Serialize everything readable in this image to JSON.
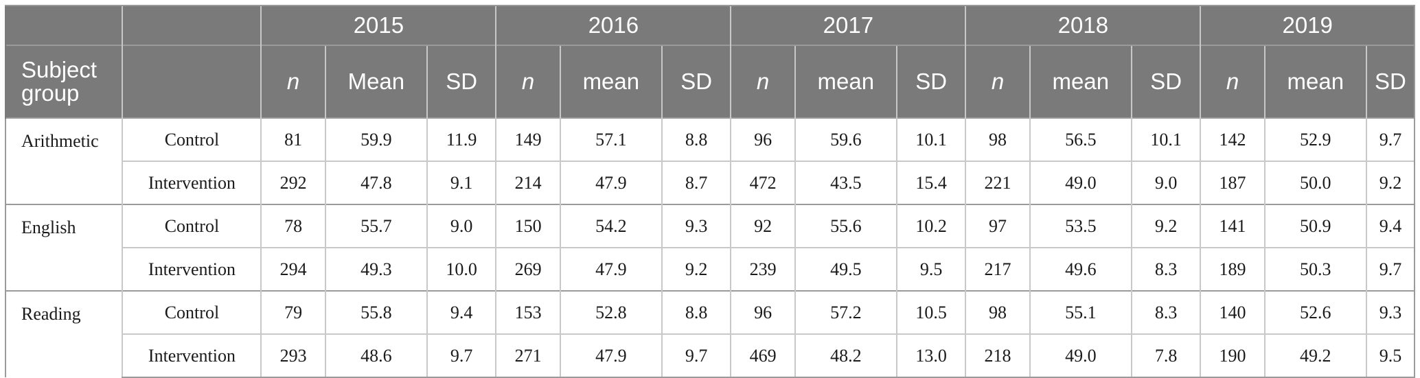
{
  "header": {
    "years": [
      "2015",
      "2016",
      "2017",
      "2018",
      "2019"
    ],
    "subject_label": "Subject group",
    "columns": [
      [
        "n",
        "Mean",
        "SD"
      ],
      [
        "n",
        "mean",
        "SD"
      ],
      [
        "n",
        "mean",
        "SD"
      ],
      [
        "n",
        "mean",
        "SD"
      ],
      [
        "n",
        "mean",
        "SD"
      ]
    ]
  },
  "rows": [
    {
      "subject": "Arithmetic",
      "group": "Control",
      "values": [
        "81",
        "59.9",
        "11.9",
        "149",
        "57.1",
        "8.8",
        "96",
        "59.6",
        "10.1",
        "98",
        "56.5",
        "10.1",
        "142",
        "52.9",
        "9.7"
      ]
    },
    {
      "subject": "",
      "group": "Intervention",
      "values": [
        "292",
        "47.8",
        "9.1",
        "214",
        "47.9",
        "8.7",
        "472",
        "43.5",
        "15.4",
        "221",
        "49.0",
        "9.0",
        "187",
        "50.0",
        "9.2"
      ]
    },
    {
      "subject": "English",
      "group": "Control",
      "values": [
        "78",
        "55.7",
        "9.0",
        "150",
        "54.2",
        "9.3",
        "92",
        "55.6",
        "10.2",
        "97",
        "53.5",
        "9.2",
        "141",
        "50.9",
        "9.4"
      ]
    },
    {
      "subject": "",
      "group": "Intervention",
      "values": [
        "294",
        "49.3",
        "10.0",
        "269",
        "47.9",
        "9.2",
        "239",
        "49.5",
        "9.5",
        "217",
        "49.6",
        "8.3",
        "189",
        "50.3",
        "9.7"
      ]
    },
    {
      "subject": "Reading",
      "group": "Control",
      "values": [
        "79",
        "55.8",
        "9.4",
        "153",
        "52.8",
        "8.8",
        "96",
        "57.2",
        "10.5",
        "98",
        "55.1",
        "8.3",
        "140",
        "52.6",
        "9.3"
      ]
    },
    {
      "subject": "",
      "group": "Intervention",
      "values": [
        "293",
        "48.6",
        "9.7",
        "271",
        "47.9",
        "9.7",
        "469",
        "48.2",
        "13.0",
        "218",
        "49.0",
        "7.8",
        "190",
        "49.2",
        "9.5"
      ]
    }
  ]
}
